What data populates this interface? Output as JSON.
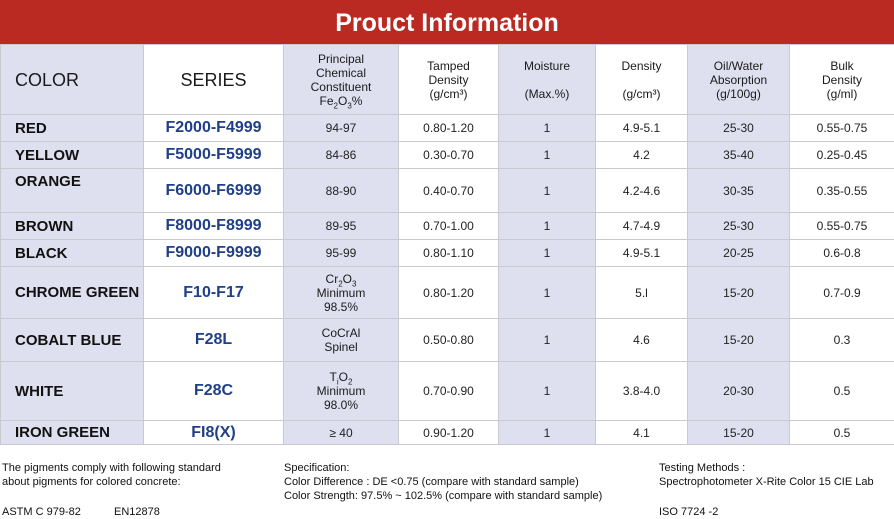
{
  "title": "Prouct Information",
  "headers": {
    "color": "COLOR",
    "series": "SERIES",
    "principal": [
      "Principal",
      "Chemical",
      "Constituent",
      "Fe",
      "2",
      "O",
      "3",
      "%"
    ],
    "tamped": [
      "Tamped",
      "Density",
      "(g/cm³)"
    ],
    "moisture": [
      "Moisture",
      "(Max.%)"
    ],
    "density": [
      "Density",
      "(g/cm³)"
    ],
    "oil": [
      "Oil/Water",
      "Absorption",
      "(g/100g)"
    ],
    "bulk": [
      "Bulk",
      "Density",
      "(g/ml)"
    ]
  },
  "rows": [
    {
      "color": "RED",
      "series": "F2000-F4999",
      "chem": [
        "94-97"
      ],
      "tamped": "0.80-1.20",
      "moisture": "1",
      "density": "4.9-5.1",
      "oil": "25-30",
      "bulk": "0.55-0.75"
    },
    {
      "color": "YELLOW",
      "series": "F5000-F5999",
      "chem": [
        "84-86"
      ],
      "tamped": "0.30-0.70",
      "moisture": "1",
      "density": "4.2",
      "oil": "35-40",
      "bulk": "0.25-0.45"
    },
    {
      "color": "ORANGE",
      "series": "F6000-F6999",
      "chem": [
        "88-90"
      ],
      "tamped": "0.40-0.70",
      "moisture": "1",
      "density": "4.2-4.6",
      "oil": "30-35",
      "bulk": "0.35-0.55"
    },
    {
      "color": "BROWN",
      "series": "F8000-F8999",
      "chem": [
        "89-95"
      ],
      "tamped": "0.70-1.00",
      "moisture": "1",
      "density": "4.7-4.9",
      "oil": "25-30",
      "bulk": "0.55-0.75"
    },
    {
      "color": "BLACK",
      "series": "F9000-F9999",
      "chem": [
        "95-99"
      ],
      "tamped": "0.80-1.10",
      "moisture": "1",
      "density": "4.9-5.1",
      "oil": "20-25",
      "bulk": "0.6-0.8"
    },
    {
      "color": "CHROME GREEN",
      "series": "F10-F17",
      "chem": [
        "Cr",
        "2",
        "O",
        "3",
        "Minimum",
        "98.5%"
      ],
      "tamped": "0.80-1.20",
      "moisture": "1",
      "density": "5.l",
      "oil": "15-20",
      "bulk": "0.7-0.9"
    },
    {
      "color": "COBALT BLUE",
      "series": "F28L",
      "chem": [
        "CoCrAl",
        "Spinel"
      ],
      "tamped": "0.50-0.80",
      "moisture": "1",
      "density": "4.6",
      "oil": "15-20",
      "bulk": "0.3"
    },
    {
      "color": "WHITE",
      "series": "F28C",
      "chem": [
        "T",
        "i",
        "O",
        "2",
        "Minimum",
        "98.0%"
      ],
      "tamped": "0.70-0.90",
      "moisture": "1",
      "density": "3.8-4.0",
      "oil": "20-30",
      "bulk": "0.5"
    },
    {
      "color": "IRON GREEN",
      "series": "FI8(X)",
      "chem": [
        "≥ 40"
      ],
      "tamped": "0.90-1.20",
      "moisture": "1",
      "density": "4.1",
      "oil": "15-20",
      "bulk": "0.5"
    }
  ],
  "footer": {
    "standard_line1": "The pigments comply with following standard",
    "standard_line2": "about pigments for colored concrete:",
    "astm": "ASTM C 979-82",
    "en": "EN12878",
    "spec_title": "Specification:",
    "spec_diff": "Color Difference : DE <0.75 (compare with standard sample)",
    "spec_strength": "Color Strength: 97.5% ~ 102.5%  (compare with standard sample)",
    "test_title": "Testing Methods :",
    "test_method": "Spectrophotometer X-Rite Color 15 CIE Lab",
    "iso": "ISO 7724 -2"
  }
}
